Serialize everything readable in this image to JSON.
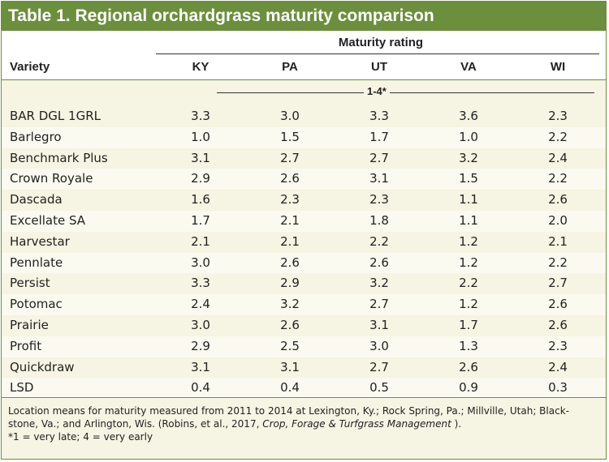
{
  "title": "Table 1. Regional orchardgrass maturity comparison",
  "header": {
    "group_label": "Maturity rating",
    "variety_label": "Variety",
    "columns": [
      "KY",
      "PA",
      "UT",
      "VA",
      "WI"
    ],
    "scale": "1-4*"
  },
  "rows": [
    {
      "variety": "BAR DGL 1GRL",
      "values": [
        "3.3",
        "3.0",
        "3.3",
        "3.6",
        "2.3"
      ]
    },
    {
      "variety": "Barlegro",
      "values": [
        "1.0",
        "1.5",
        "1.7",
        "1.0",
        "2.2"
      ]
    },
    {
      "variety": "Benchmark Plus",
      "values": [
        "3.1",
        "2.7",
        "2.7",
        "3.2",
        "2.4"
      ]
    },
    {
      "variety": "Crown Royale",
      "values": [
        "2.9",
        "2.6",
        "3.1",
        "1.5",
        "2.2"
      ]
    },
    {
      "variety": "Dascada",
      "values": [
        "1.6",
        "2.3",
        "2.3",
        "1.1",
        "2.6"
      ]
    },
    {
      "variety": "Excellate SA",
      "values": [
        "1.7",
        "2.1",
        "1.8",
        "1.1",
        "2.0"
      ]
    },
    {
      "variety": "Harvestar",
      "values": [
        "2.1",
        "2.1",
        "2.2",
        "1.2",
        "2.1"
      ]
    },
    {
      "variety": "Pennlate",
      "values": [
        "3.0",
        "2.6",
        "2.6",
        "1.2",
        "2.2"
      ]
    },
    {
      "variety": "Persist",
      "values": [
        "3.3",
        "2.9",
        "3.2",
        "2.2",
        "2.7"
      ]
    },
    {
      "variety": "Potomac",
      "values": [
        "2.4",
        "3.2",
        "2.7",
        "1.2",
        "2.6"
      ]
    },
    {
      "variety": "Prairie",
      "values": [
        "3.0",
        "2.6",
        "3.1",
        "1.7",
        "2.6"
      ]
    },
    {
      "variety": "Profit",
      "values": [
        "2.9",
        "2.5",
        "3.0",
        "1.3",
        "2.3"
      ]
    },
    {
      "variety": "Quickdraw",
      "values": [
        "3.1",
        "3.1",
        "2.7",
        "2.6",
        "2.4"
      ]
    },
    {
      "variety": "LSD",
      "values": [
        "0.4",
        "0.4",
        "0.5",
        "0.9",
        "0.3"
      ]
    }
  ],
  "footnote": {
    "line1_start": "Location means for maturity measured from 2011 to 2014 at Lexington, Ky.; Rock Spring, Pa.; Millville, Utah; Black-",
    "line2_start": "stone, Va.; and Arlington, Wis. (Robins, et al., 2017, ",
    "journal": "Crop, Forage & Turfgrass Management",
    "line2_end": " ).",
    "line3": "*1 = very late; 4 = very early"
  }
}
